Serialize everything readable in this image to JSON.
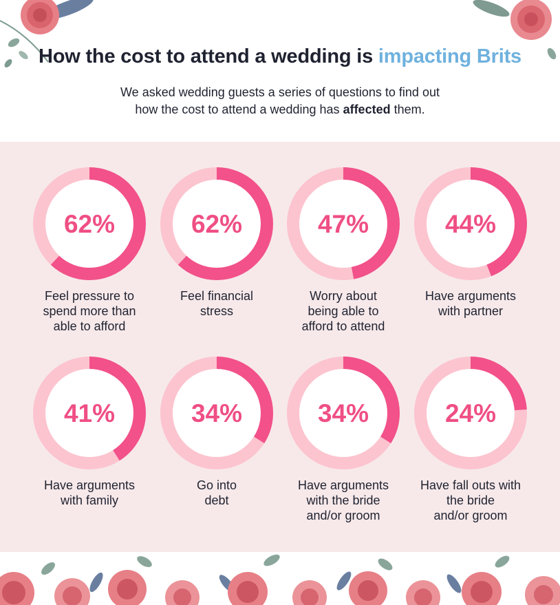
{
  "header": {
    "title_main": "How the cost to attend a wedding is",
    "title_accent": "impacting Brits",
    "subtitle_line1": "We asked wedding guests a series of questions to find out",
    "subtitle_line2_pre": "how the cost to attend a wedding has",
    "subtitle_line2_bold": "affected",
    "subtitle_line2_post": "them."
  },
  "colors": {
    "accent_blue": "#6fb1de",
    "ring_fill": "#f2518a",
    "ring_track": "#fcc4cf",
    "value_text": "#ef4f84",
    "panel_bg": "#f7e9ea"
  },
  "chart_data": {
    "type": "donut",
    "unit": "%",
    "items": [
      {
        "value": 62,
        "display": "62%",
        "label": "Feel pressure to\nspend more than\nable to afford"
      },
      {
        "value": 62,
        "display": "62%",
        "label": "Feel financial\nstress"
      },
      {
        "value": 47,
        "display": "47%",
        "label": "Worry about\nbeing able to\nafford to attend"
      },
      {
        "value": 44,
        "display": "44%",
        "label": "Have arguments\nwith partner"
      },
      {
        "value": 41,
        "display": "41%",
        "label": "Have arguments\nwith family"
      },
      {
        "value": 34,
        "display": "34%",
        "label": "Go into\ndebt"
      },
      {
        "value": 34,
        "display": "34%",
        "label": "Have arguments\nwith the bride\nand/or groom"
      },
      {
        "value": 24,
        "display": "24%",
        "label": "Have fall outs with\nthe bride\nand/or groom"
      }
    ]
  }
}
